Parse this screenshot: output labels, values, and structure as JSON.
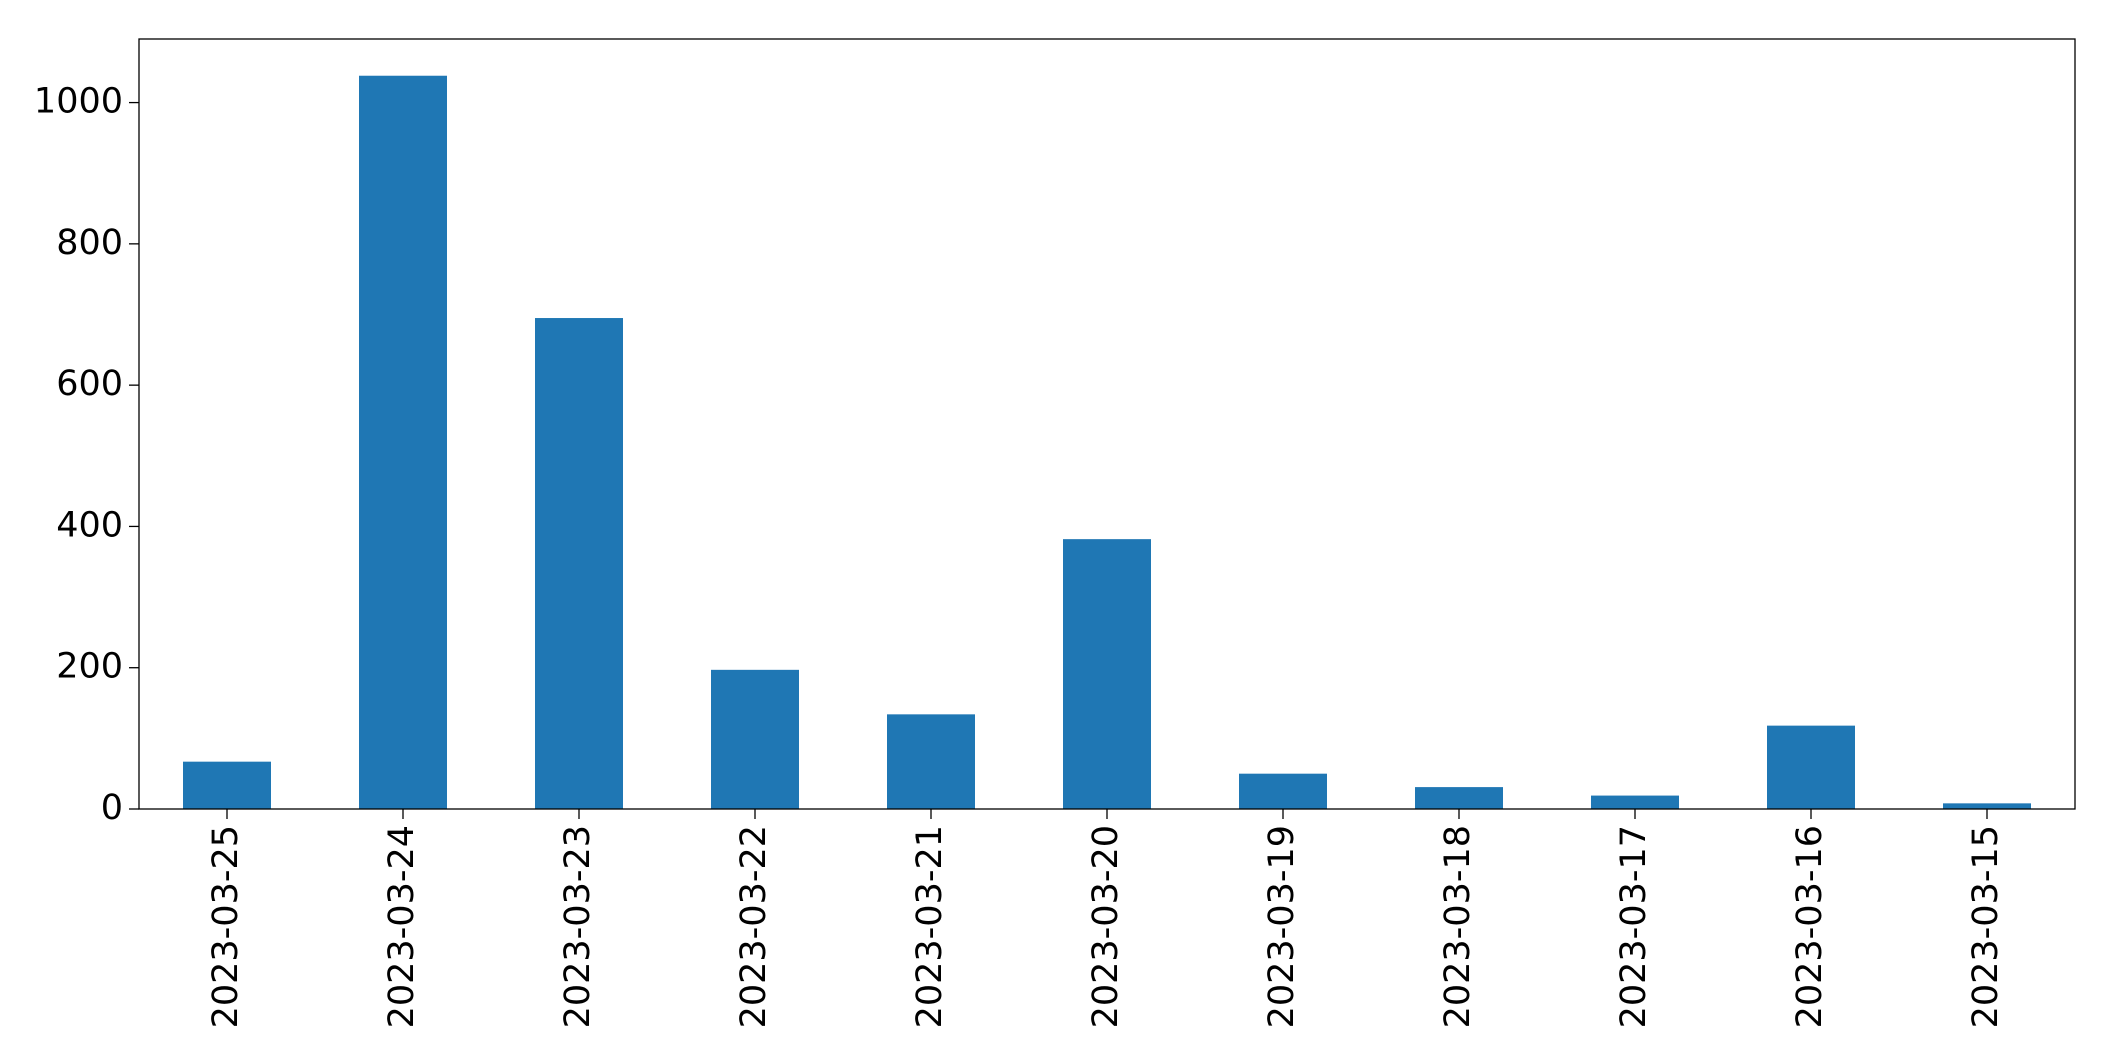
{
  "chart_data": {
    "type": "bar",
    "categories": [
      "2023-03-25",
      "2023-03-24",
      "2023-03-23",
      "2023-03-22",
      "2023-03-21",
      "2023-03-20",
      "2023-03-19",
      "2023-03-18",
      "2023-03-17",
      "2023-03-16",
      "2023-03-15"
    ],
    "values": [
      67,
      1038,
      695,
      197,
      134,
      382,
      50,
      31,
      19,
      118,
      8
    ],
    "color": "#1f77b4",
    "ylim": [
      0,
      1090
    ],
    "yticks": [
      0,
      200,
      400,
      600,
      800,
      1000
    ],
    "grid": false
  }
}
